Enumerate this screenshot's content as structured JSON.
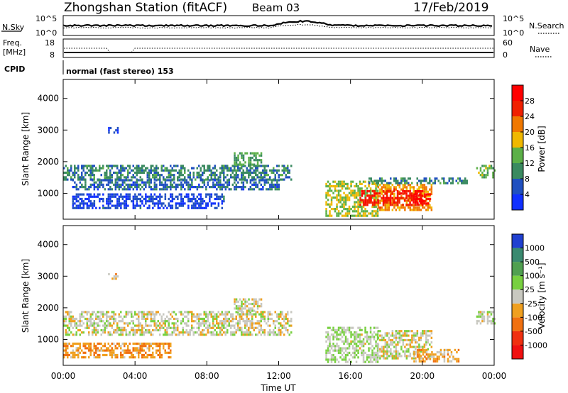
{
  "header": {
    "station": "Zhongshan Station (fitACF)",
    "beam": "Beam 03",
    "date": "17/Feb/2019"
  },
  "noise_panel": {
    "left_label": "N.Sky",
    "left_top": "10^5",
    "left_bottom": "10^0",
    "right_label": "N.Search",
    "right_top": "10^5",
    "right_bottom": "10^0"
  },
  "freq_panel": {
    "left_label_1": "Freq.",
    "left_label_2": "[MHz]",
    "left_top": "18",
    "left_bottom": "8",
    "right_label": "Nave",
    "right_top": "60",
    "right_bottom": "0"
  },
  "cpid": {
    "label": "CPID",
    "text": "normal (fast stereo) 153"
  },
  "power_panel": {
    "ylabel": "Slant Range [km]",
    "colorbar_label": "Power [dB]",
    "colorbar_ticks": [
      "4",
      "8",
      "12",
      "16",
      "20",
      "24",
      "28"
    ],
    "colorbar_colors": [
      "#1030ff",
      "#2050c0",
      "#3a8a60",
      "#5cb048",
      "#f0b800",
      "#f07800",
      "#f02000",
      "#ff0000"
    ]
  },
  "velocity_panel": {
    "ylabel": "Slant Range [km]",
    "colorbar_label": "Velocity [m s⁻¹]",
    "colorbar_ticks": [
      "1000",
      "500",
      "100",
      "25",
      "-25",
      "-100",
      "-500",
      "-1000"
    ],
    "colorbar_colors": [
      "#2040d0",
      "#3a8a70",
      "#50a050",
      "#78d040",
      "#c8c8c0",
      "#f0a020",
      "#f07010",
      "#f03010",
      "#f01010"
    ]
  },
  "axes": {
    "y_ticks": [
      "1000",
      "2000",
      "3000",
      "4000"
    ],
    "x_ticks": [
      "00:00",
      "04:00",
      "08:00",
      "12:00",
      "16:00",
      "20:00",
      "00:00"
    ],
    "xlabel": "Time UT"
  },
  "chart_data": [
    {
      "type": "heatmap",
      "title": "Power [dB]",
      "xlabel": "Time UT",
      "ylabel": "Slant Range [km]",
      "xlim": [
        0,
        24
      ],
      "ylim": [
        180,
        4600
      ],
      "clim": [
        2,
        30
      ],
      "blocks": [
        {
          "t0": 0.0,
          "t1": 12.7,
          "r0": 1450,
          "r1": 1900,
          "value": 10
        },
        {
          "t0": 0.5,
          "t1": 12.0,
          "r0": 1150,
          "r1": 1450,
          "value": 8
        },
        {
          "t0": 0.5,
          "t1": 9.0,
          "r0": 500,
          "r1": 1000,
          "value": 6
        },
        {
          "t0": 2.5,
          "t1": 3.0,
          "r0": 2950,
          "r1": 3100,
          "value": 6
        },
        {
          "t0": 9.5,
          "t1": 11.0,
          "r0": 1900,
          "r1": 2300,
          "value": 12
        },
        {
          "t0": 14.6,
          "t1": 17.5,
          "r0": 300,
          "r1": 1400,
          "value": 16
        },
        {
          "t0": 17.5,
          "t1": 20.5,
          "r0": 500,
          "r1": 1300,
          "value": 20
        },
        {
          "t0": 16.5,
          "t1": 20.0,
          "r0": 600,
          "r1": 1100,
          "value": 26
        },
        {
          "t0": 19.5,
          "t1": 20.4,
          "r0": 700,
          "r1": 1000,
          "value": 28
        },
        {
          "t0": 17.0,
          "t1": 22.5,
          "r0": 1300,
          "r1": 1500,
          "value": 10
        },
        {
          "t0": 23.0,
          "t1": 24.0,
          "r0": 1500,
          "r1": 1900,
          "value": 14
        }
      ]
    },
    {
      "type": "heatmap",
      "title": "Velocity [m s⁻¹]",
      "xlabel": "Time UT",
      "ylabel": "Slant Range [km]",
      "xlim": [
        0,
        24
      ],
      "ylim": [
        180,
        4600
      ],
      "clim": [
        -1000,
        1000
      ],
      "blocks": [
        {
          "t0": 0.0,
          "t1": 12.7,
          "r0": 1150,
          "r1": 1900,
          "value": 0
        },
        {
          "t0": 0.0,
          "t1": 6.0,
          "r0": 400,
          "r1": 900,
          "value": -300
        },
        {
          "t0": 2.5,
          "t1": 3.0,
          "r0": 2950,
          "r1": 3100,
          "value": -200
        },
        {
          "t0": 9.5,
          "t1": 11.0,
          "r0": 1900,
          "r1": 2300,
          "value": 0
        },
        {
          "t0": 14.6,
          "t1": 17.5,
          "r0": 300,
          "r1": 1400,
          "value": 100
        },
        {
          "t0": 17.5,
          "t1": 20.5,
          "r0": 400,
          "r1": 1300,
          "value": 0
        },
        {
          "t0": 19.5,
          "t1": 22.0,
          "r0": 300,
          "r1": 700,
          "value": -200
        },
        {
          "t0": 23.0,
          "t1": 24.0,
          "r0": 1500,
          "r1": 1900,
          "value": 0
        }
      ]
    }
  ]
}
